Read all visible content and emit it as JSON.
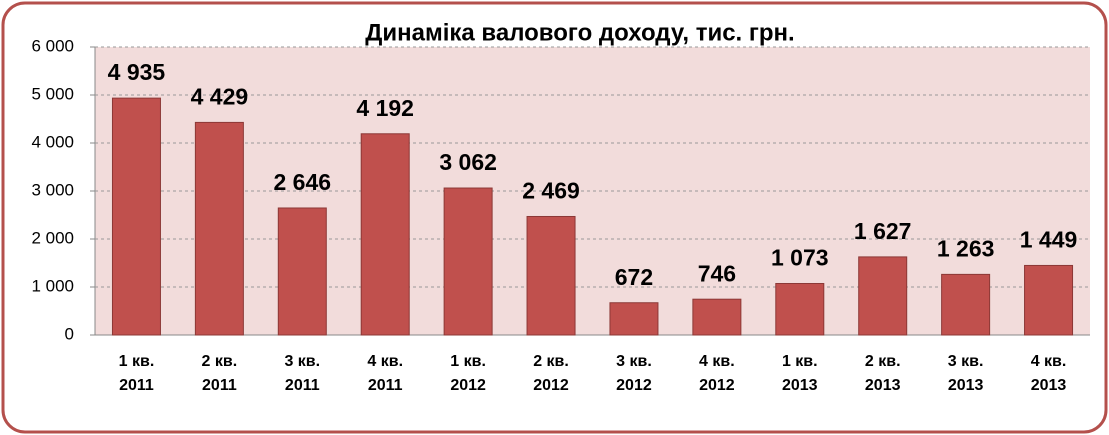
{
  "chart_data": {
    "type": "bar",
    "title": "Динаміка валового доходу, тис. грн.",
    "categories": [
      "1 кв. 2011",
      "2 кв. 2011",
      "3 кв. 2011",
      "4 кв. 2011",
      "1 кв. 2012",
      "2 кв. 2012",
      "3 кв. 2012",
      "4 кв. 2012",
      "1 кв. 2013",
      "2 кв. 2013",
      "3 кв. 2013",
      "4 кв. 2013"
    ],
    "values": [
      4935,
      4429,
      2646,
      4192,
      3062,
      2469,
      672,
      746,
      1073,
      1627,
      1263,
      1449
    ],
    "value_labels": [
      "4 935",
      "4 429",
      "2 646",
      "4 192",
      "3 062",
      "2 469",
      "672",
      "746",
      "1 073",
      "1 627",
      "1 263",
      "1 449"
    ],
    "color": "#c0504d",
    "ylim": [
      0,
      6000
    ],
    "yticks": [
      0,
      {
        "value": 1000,
        "label": "1 000"
      },
      {
        "value": 2000,
        "label": "2 000"
      },
      {
        "value": 3000,
        "label": "3 000"
      },
      {
        "value": 4000,
        "label": "4 000"
      },
      {
        "value": 5000,
        "label": "5 000"
      },
      {
        "value": 6000,
        "label": "6 000"
      }
    ],
    "grid": true
  }
}
